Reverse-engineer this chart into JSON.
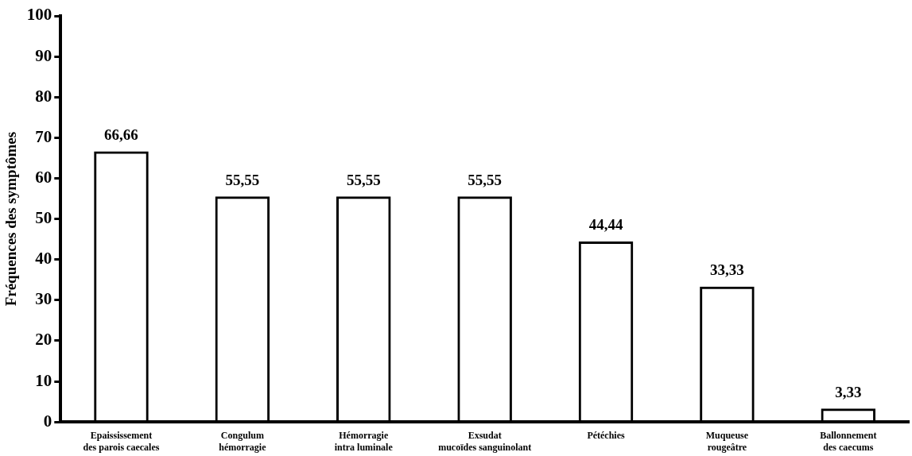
{
  "chart_data": {
    "type": "bar",
    "ylabel": "Fréquences des symptômes",
    "categories": [
      "Epaississement des parois caecales",
      "Congulum hémorragie",
      "Hémorragie intra luminale",
      "Exsudat mucoïdes sanguinolant",
      "Pétéchies",
      "Muqueuse rougeâtre",
      "Ballonnement des caecums"
    ],
    "values": [
      66.66,
      55.55,
      55.55,
      55.55,
      44.44,
      33.33,
      3.33
    ],
    "value_labels": [
      "66,66",
      "55,55",
      "55,55",
      "55,55",
      "44,44",
      "33,33",
      "3,33"
    ],
    "color": "#000000",
    "ylim": [
      0,
      100
    ],
    "yticks": [
      0,
      10,
      20,
      30,
      40,
      50,
      60,
      70,
      80,
      90,
      100
    ],
    "grid": false,
    "legend": false
  }
}
